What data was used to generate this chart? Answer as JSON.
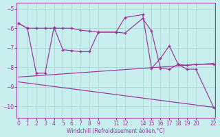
{
  "xlabel": "Windchill (Refroidissement éolien,°C)",
  "bg_color": "#c8eeed",
  "grid_color": "#a8d8d0",
  "line_color": "#993399",
  "line1_x": [
    0,
    1,
    2,
    3,
    4,
    5,
    6,
    7,
    8,
    9,
    11,
    12,
    14,
    15,
    16,
    17,
    18,
    19,
    20,
    22
  ],
  "line1_y": [
    -5.75,
    -6.0,
    -6.0,
    -6.0,
    -6.0,
    -6.0,
    -6.0,
    -6.1,
    -6.15,
    -6.2,
    -6.2,
    -6.25,
    -5.5,
    -6.15,
    -8.05,
    -8.1,
    -7.85,
    -7.9,
    -7.85,
    -7.85
  ],
  "line2_x": [
    0,
    1,
    2,
    3,
    4,
    5,
    6,
    7,
    8,
    9,
    11,
    12,
    14,
    15,
    16,
    17,
    18,
    19,
    20,
    22
  ],
  "line2_y": [
    -5.75,
    -6.0,
    -8.3,
    -8.3,
    -5.95,
    -7.1,
    -7.15,
    -7.2,
    -7.2,
    -6.2,
    -6.2,
    -5.45,
    -5.3,
    -8.05,
    -7.55,
    -6.9,
    -7.85,
    -8.1,
    -8.1,
    -10.05
  ],
  "line3_x": [
    0,
    22
  ],
  "line3_y": [
    -8.5,
    -7.8
  ],
  "line4_x": [
    0,
    22
  ],
  "line4_y": [
    -8.75,
    -10.05
  ],
  "xlim": [
    -0.2,
    22.2
  ],
  "ylim": [
    -10.6,
    -4.7
  ],
  "xticks": [
    0,
    1,
    2,
    3,
    4,
    5,
    6,
    7,
    8,
    9,
    11,
    12,
    14,
    15,
    16,
    17,
    18,
    19,
    20,
    22
  ],
  "yticks": [
    -10,
    -9,
    -8,
    -7,
    -6,
    -5
  ]
}
